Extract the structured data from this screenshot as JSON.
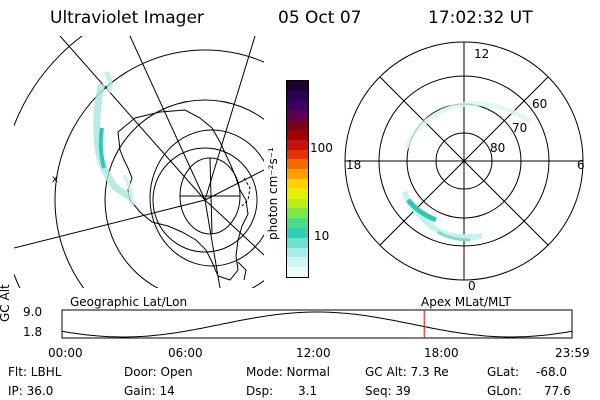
{
  "header": {
    "title": "Ultraviolet Imager",
    "date": "05 Oct 07",
    "time": "17:02:32 UT"
  },
  "colorbar": {
    "unit_label": "photon cm⁻²s⁻¹",
    "ticks": [
      "100",
      "10"
    ],
    "colors": [
      "#1c0030",
      "#2a0050",
      "#3c0060",
      "#5a0050",
      "#7a0020",
      "#a00000",
      "#c81010",
      "#e53000",
      "#f26a00",
      "#f7a000",
      "#f9d400",
      "#e8ef00",
      "#b8ef1a",
      "#7ee84a",
      "#49dd8a",
      "#2fd0b8",
      "#6fe0d0",
      "#a8ecec",
      "#d2f4f4",
      "#eefafa"
    ]
  },
  "polar": {
    "top_label": "12",
    "bottom_label": "0",
    "left_label": "18",
    "right_label": "6",
    "lat_labels": [
      "60",
      "70",
      "80"
    ]
  },
  "map": {
    "left_label": "Geographic Lat/Lon",
    "right_label": "Apex  MLat/MLT"
  },
  "timeline": {
    "y_axis_label": "GC Alt",
    "y_ticks": [
      "9.0",
      "1.8"
    ],
    "x_ticks": [
      "00:00",
      "06:00",
      "12:00",
      "18:00",
      "23:59"
    ],
    "current_marker_time": "17:02"
  },
  "status": {
    "filter": "Flt: LBHL",
    "ip": "IP: 36.0",
    "door": "Door: Open",
    "gain": "Gain: 14",
    "mode": "Mode: Normal",
    "dsp_label": "Dsp:",
    "dsp_value": "3.1",
    "gc_alt": "GC Alt: 7.3 Re",
    "seq": "Seq: 39",
    "glat_label": "GLat:",
    "glat_value": "-68.0",
    "glon_label": "GLon:",
    "glon_value": "77.6"
  },
  "accent_colors": {
    "marker": "#ff0000",
    "aurora": "#30c8b0"
  }
}
